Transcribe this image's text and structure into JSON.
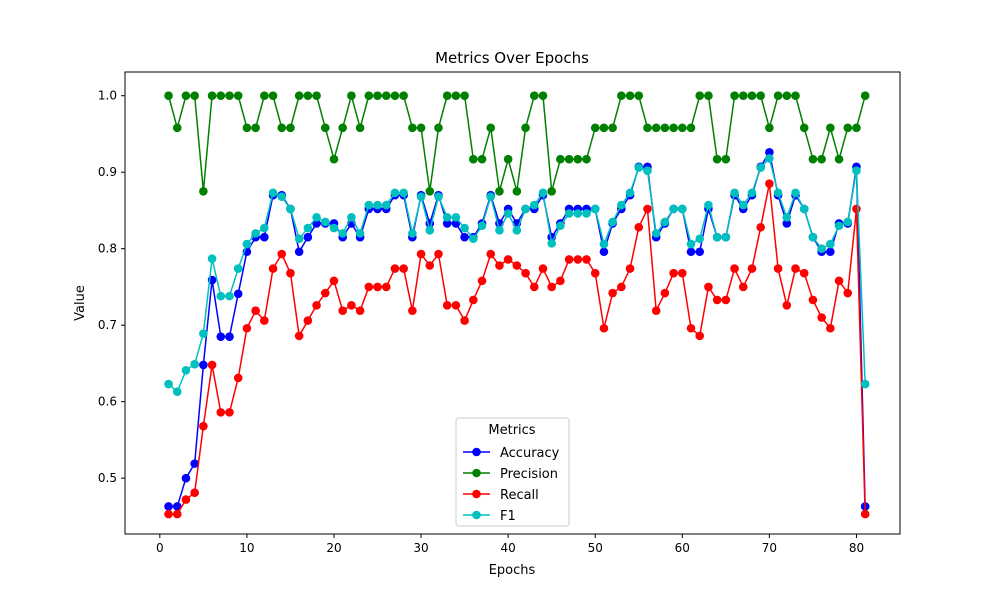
{
  "chart_data": {
    "type": "line",
    "title": "Metrics Over Epochs",
    "xlabel": "Epochs",
    "ylabel": "Value",
    "xlim": [
      -4,
      85
    ],
    "ylim": [
      0.427,
      1.031
    ],
    "x_ticks": [
      0,
      10,
      20,
      30,
      40,
      50,
      60,
      70,
      80
    ],
    "y_ticks": [
      0.5,
      0.6,
      0.7,
      0.8,
      0.9,
      1.0
    ],
    "x_tick_labels": [
      "0",
      "10",
      "20",
      "30",
      "40",
      "50",
      "60",
      "70",
      "80"
    ],
    "y_tick_labels": [
      "0.5",
      "0.6",
      "0.7",
      "0.8",
      "0.9",
      "1.0"
    ],
    "grid": false,
    "legend": {
      "title": "Metrics",
      "placement": "lower-center"
    },
    "x": [
      1,
      2,
      3,
      4,
      5,
      6,
      7,
      8,
      9,
      10,
      11,
      12,
      13,
      14,
      15,
      16,
      17,
      18,
      19,
      20,
      21,
      22,
      23,
      24,
      25,
      26,
      27,
      28,
      29,
      30,
      31,
      32,
      33,
      34,
      35,
      36,
      37,
      38,
      39,
      40,
      41,
      42,
      43,
      44,
      45,
      46,
      47,
      48,
      49,
      50,
      51,
      52,
      53,
      54,
      55,
      56,
      57,
      58,
      59,
      60,
      61,
      62,
      63,
      64,
      65,
      66,
      67,
      68,
      69,
      70,
      71,
      72,
      73,
      74,
      75,
      76,
      77,
      78,
      79,
      80,
      81
    ],
    "series": [
      {
        "name": "Accuracy",
        "color": "#0000ff",
        "values": [
          0.463,
          0.463,
          0.5,
          0.519,
          0.648,
          0.759,
          0.685,
          0.685,
          0.741,
          0.796,
          0.815,
          0.815,
          0.87,
          0.87,
          0.852,
          0.796,
          0.815,
          0.833,
          0.833,
          0.833,
          0.815,
          0.833,
          0.815,
          0.852,
          0.852,
          0.852,
          0.87,
          0.87,
          0.815,
          0.87,
          0.833,
          0.87,
          0.833,
          0.833,
          0.815,
          0.815,
          0.833,
          0.87,
          0.833,
          0.852,
          0.833,
          0.852,
          0.852,
          0.87,
          0.815,
          0.833,
          0.852,
          0.852,
          0.852,
          0.852,
          0.796,
          0.833,
          0.852,
          0.87,
          0.907,
          0.907,
          0.815,
          0.833,
          0.852,
          0.852,
          0.796,
          0.796,
          0.852,
          0.815,
          0.815,
          0.87,
          0.852,
          0.87,
          0.907,
          0.926,
          0.87,
          0.833,
          0.87,
          0.852,
          0.815,
          0.796,
          0.796,
          0.833,
          0.833,
          0.907,
          0.463
        ]
      },
      {
        "name": "Precision",
        "color": "#008000",
        "values": [
          1.0,
          0.958,
          1.0,
          1.0,
          0.875,
          1.0,
          1.0,
          1.0,
          1.0,
          0.958,
          0.958,
          1.0,
          1.0,
          0.958,
          0.958,
          1.0,
          1.0,
          1.0,
          0.958,
          0.917,
          0.958,
          1.0,
          0.958,
          1.0,
          1.0,
          1.0,
          1.0,
          1.0,
          0.958,
          0.958,
          0.875,
          0.958,
          1.0,
          1.0,
          1.0,
          0.917,
          0.917,
          0.958,
          0.875,
          0.917,
          0.875,
          0.958,
          1.0,
          1.0,
          0.875,
          0.917,
          0.917,
          0.917,
          0.917,
          0.958,
          0.958,
          0.958,
          1.0,
          1.0,
          1.0,
          0.958,
          0.958,
          0.958,
          0.958,
          0.958,
          0.958,
          1.0,
          1.0,
          0.917,
          0.917,
          1.0,
          1.0,
          1.0,
          1.0,
          0.958,
          1.0,
          1.0,
          1.0,
          0.958,
          0.917,
          0.917,
          0.958,
          0.917,
          0.958,
          0.958,
          1.0
        ]
      },
      {
        "name": "Recall",
        "color": "#ff0000",
        "values": [
          0.453,
          0.453,
          0.472,
          0.481,
          0.568,
          0.648,
          0.586,
          0.586,
          0.631,
          0.696,
          0.719,
          0.706,
          0.774,
          0.793,
          0.768,
          0.686,
          0.706,
          0.726,
          0.742,
          0.758,
          0.719,
          0.726,
          0.719,
          0.75,
          0.75,
          0.75,
          0.774,
          0.774,
          0.719,
          0.793,
          0.778,
          0.793,
          0.726,
          0.726,
          0.706,
          0.733,
          0.758,
          0.793,
          0.778,
          0.786,
          0.778,
          0.768,
          0.75,
          0.774,
          0.75,
          0.758,
          0.786,
          0.786,
          0.786,
          0.768,
          0.696,
          0.742,
          0.75,
          0.774,
          0.828,
          0.852,
          0.719,
          0.742,
          0.768,
          0.768,
          0.696,
          0.686,
          0.75,
          0.733,
          0.733,
          0.774,
          0.75,
          0.774,
          0.828,
          0.885,
          0.774,
          0.726,
          0.774,
          0.768,
          0.733,
          0.71,
          0.696,
          0.758,
          0.742,
          0.852,
          0.453
        ]
      },
      {
        "name": "F1",
        "color": "#00bfbf",
        "values": [
          0.623,
          0.613,
          0.641,
          0.649,
          0.689,
          0.787,
          0.738,
          0.738,
          0.774,
          0.806,
          0.82,
          0.827,
          0.873,
          0.868,
          0.852,
          0.813,
          0.827,
          0.841,
          0.835,
          0.827,
          0.82,
          0.841,
          0.82,
          0.857,
          0.857,
          0.857,
          0.873,
          0.873,
          0.82,
          0.868,
          0.824,
          0.868,
          0.841,
          0.841,
          0.827,
          0.813,
          0.83,
          0.868,
          0.824,
          0.846,
          0.824,
          0.852,
          0.857,
          0.873,
          0.807,
          0.83,
          0.846,
          0.846,
          0.846,
          0.852,
          0.806,
          0.835,
          0.857,
          0.873,
          0.906,
          0.902,
          0.82,
          0.835,
          0.852,
          0.852,
          0.806,
          0.813,
          0.857,
          0.815,
          0.815,
          0.873,
          0.857,
          0.873,
          0.906,
          0.918,
          0.873,
          0.841,
          0.873,
          0.852,
          0.815,
          0.8,
          0.806,
          0.83,
          0.835,
          0.902,
          0.623
        ]
      }
    ]
  }
}
